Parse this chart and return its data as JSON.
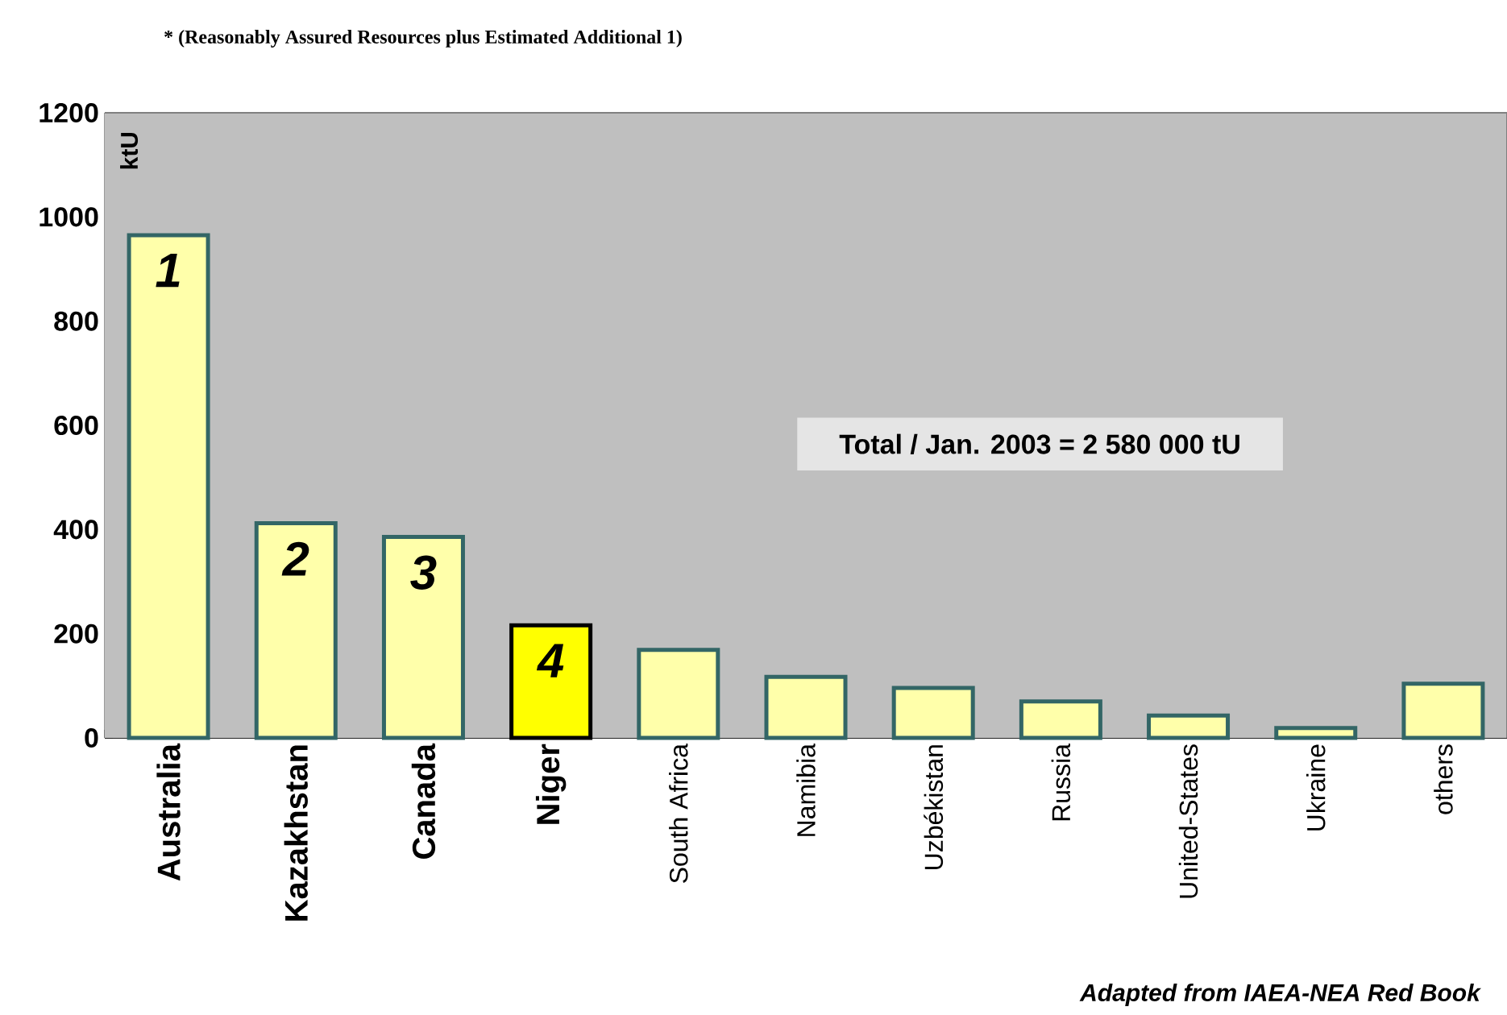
{
  "chart_data": {
    "type": "bar",
    "title": "* (Reasonably Assured Resources plus Estimated Additional 1)",
    "ylabel": "ktU",
    "categories": [
      "Australia",
      "Kazakhstan",
      "Canada",
      "Niger",
      "South Africa",
      "Namibia",
      "Uzbékistan",
      "Russia",
      "United-States",
      "Ukraine",
      "others"
    ],
    "values": [
      965,
      412,
      386,
      216,
      169,
      117,
      96,
      70,
      43,
      19,
      104
    ],
    "colors": [
      "#ffffaa",
      "#ffffaa",
      "#ffffaa",
      "#ffff00",
      "#ffffaa",
      "#ffffaa",
      "#ffffaa",
      "#ffffaa",
      "#ffffaa",
      "#ffffaa",
      "#ffffaa"
    ],
    "ylim": [
      0,
      1200
    ],
    "yticks": [
      0,
      200,
      400,
      600,
      800,
      1000,
      1200
    ],
    "grid": "y",
    "annotations": [
      "1",
      "2",
      "3",
      "4",
      "Total / Jan. 2003 = 2 580 000 tU",
      "Adapted from IAEA-NEA Red Book"
    ]
  }
}
